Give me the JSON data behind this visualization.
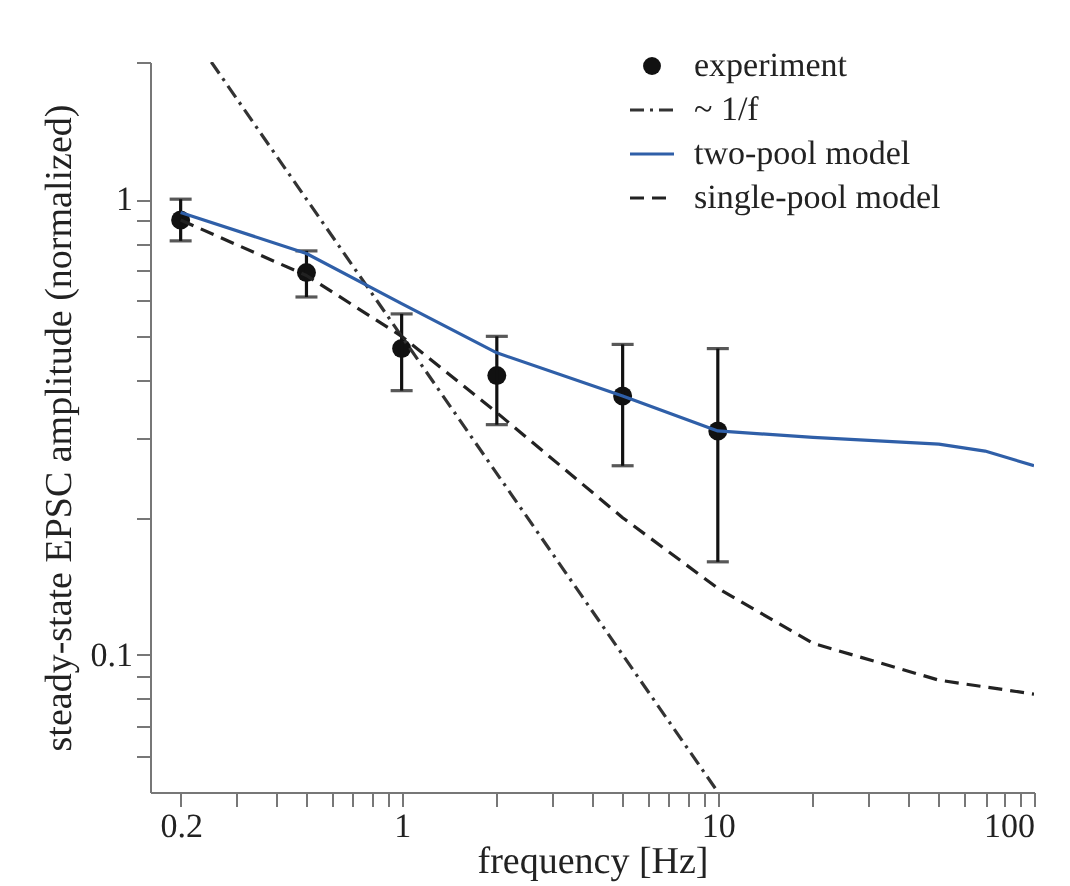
{
  "chart_data": {
    "type": "line",
    "xlabel": "frequency [Hz]",
    "ylabel": "steady-state EPSC amplitude (normalized)",
    "log": "xy",
    "grid": false,
    "legend": "top right",
    "xlim": [
      0.16,
      100
    ],
    "ylim": [
      0.05,
      2
    ],
    "xticks": [
      0.2,
      {
        "value": 0.3,
        "label": null
      },
      {
        "value": 0.4,
        "label": null
      },
      {
        "value": 0.5,
        "label": null
      },
      {
        "value": 0.6,
        "label": null
      },
      {
        "value": 0.7,
        "label": null
      },
      {
        "value": 0.8,
        "label": null
      },
      {
        "value": 0.9,
        "label": null
      },
      1,
      {
        "value": 2,
        "label": null
      },
      {
        "value": 3,
        "label": null
      },
      {
        "value": 4,
        "label": null
      },
      {
        "value": 5,
        "label": null
      },
      {
        "value": 6,
        "label": null
      },
      {
        "value": 7,
        "label": null
      },
      {
        "value": 8,
        "label": null
      },
      {
        "value": 9,
        "label": null
      },
      10,
      {
        "value": 20,
        "label": null
      },
      {
        "value": 30,
        "label": null
      },
      {
        "value": 40,
        "label": null
      },
      {
        "value": 50,
        "label": null
      },
      {
        "value": 60,
        "label": null
      },
      {
        "value": 70,
        "label": null
      },
      {
        "value": 80,
        "label": null
      },
      {
        "value": 90,
        "label": null
      },
      100
    ],
    "yticks": [
      {
        "value": 0.06,
        "label": null
      },
      {
        "value": 0.07,
        "label": null
      },
      {
        "value": 0.08,
        "label": null
      },
      {
        "value": 0.09,
        "label": null
      },
      0.1,
      {
        "value": 0.2,
        "label": null
      },
      {
        "value": 0.3,
        "label": null
      },
      {
        "value": 0.4,
        "label": null
      },
      {
        "value": 0.5,
        "label": null
      },
      {
        "value": 0.6,
        "label": null
      },
      {
        "value": 0.7,
        "label": null
      },
      {
        "value": 0.8,
        "label": null
      },
      {
        "value": 0.9,
        "label": null
      },
      1,
      {
        "value": 2,
        "label": null
      }
    ],
    "series": [
      {
        "name": "experiment",
        "type": "scatter",
        "marker": "circle",
        "color": "#111111",
        "x": [
          0.2,
          0.5,
          1,
          2,
          5,
          10
        ],
        "values": [
          0.9,
          0.69,
          0.47,
          0.41,
          0.37,
          0.31
        ],
        "errors": [
          [
            0.81,
            1.0
          ],
          [
            0.61,
            0.77
          ],
          [
            0.38,
            0.56
          ],
          [
            0.32,
            0.5
          ],
          [
            0.26,
            0.48
          ],
          [
            0.16,
            0.47
          ]
        ]
      },
      {
        "name": "~ 1/f",
        "type": "line",
        "line_style": "dashdot",
        "color": "#333333",
        "x": [
          0.25,
          10
        ],
        "values": [
          2.0,
          0.05
        ]
      },
      {
        "name": "two-pool model",
        "type": "line",
        "line_style": "solid",
        "color": "#2f5fa8",
        "x": [
          0.2,
          0.5,
          1,
          2,
          5,
          10,
          20,
          50,
          70,
          100
        ],
        "values": [
          0.935,
          0.76,
          0.59,
          0.46,
          0.37,
          0.31,
          0.3,
          0.29,
          0.28,
          0.26
        ]
      },
      {
        "name": "single-pool model",
        "type": "line",
        "line_style": "dashed",
        "color": "#222222",
        "x": [
          0.2,
          0.5,
          1,
          2,
          5,
          10,
          20,
          50,
          100
        ],
        "values": [
          0.9,
          0.68,
          0.5,
          0.34,
          0.2,
          0.14,
          0.106,
          0.088,
          0.082
        ]
      }
    ]
  }
}
